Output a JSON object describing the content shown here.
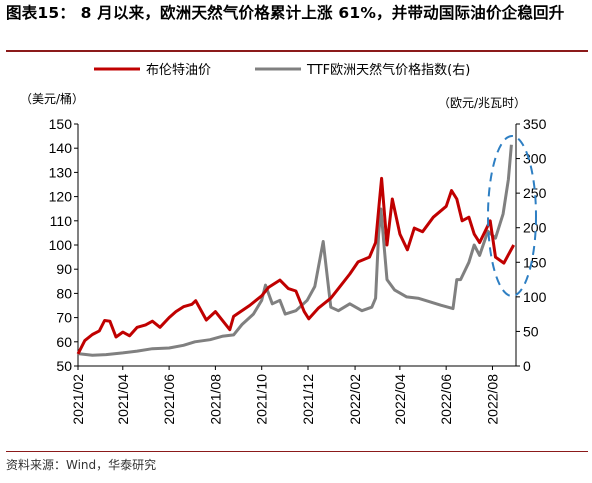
{
  "figure": {
    "title": "图表15： 8 月以来，欧洲天然气价格累计上涨 61%，并带动国际油价企稳回升",
    "source": "资料来源：Wind，华泰研究"
  },
  "chart_data": {
    "type": "line",
    "left_unit": "（美元/桶）",
    "right_unit": "（欧元/兆瓦时）",
    "x_ticks": [
      "2021/02",
      "2021/04",
      "2021/06",
      "2021/08",
      "2021/10",
      "2021/12",
      "2022/02",
      "2022/04",
      "2022/06",
      "2022/08"
    ],
    "y_left_ticks": [
      "50",
      "60",
      "70",
      "80",
      "90",
      "100",
      "110",
      "120",
      "130",
      "140",
      "150"
    ],
    "y_right_ticks": [
      "0",
      "50",
      "100",
      "150",
      "200",
      "250",
      "300",
      "350"
    ],
    "y_left_range": [
      50,
      150
    ],
    "y_right_range": [
      0,
      350
    ],
    "x_range": [
      "2021-02-01",
      "2022-09-01"
    ],
    "legend_position": "top",
    "series": [
      {
        "name": "布伦特油价",
        "axis": "left",
        "color": "#c00000",
        "points": [
          [
            "2021-02-01",
            55.0
          ],
          [
            "2021-02-10",
            60.5
          ],
          [
            "2021-02-20",
            63.0
          ],
          [
            "2021-03-01",
            64.5
          ],
          [
            "2021-03-08",
            68.8
          ],
          [
            "2021-03-15",
            68.5
          ],
          [
            "2021-03-23",
            62.0
          ],
          [
            "2021-04-01",
            64.0
          ],
          [
            "2021-04-10",
            62.5
          ],
          [
            "2021-04-20",
            66.0
          ],
          [
            "2021-05-01",
            67.0
          ],
          [
            "2021-05-10",
            68.5
          ],
          [
            "2021-05-20",
            66.0
          ],
          [
            "2021-06-01",
            70.0
          ],
          [
            "2021-06-10",
            72.5
          ],
          [
            "2021-06-20",
            74.5
          ],
          [
            "2021-07-01",
            75.5
          ],
          [
            "2021-07-06",
            77.0
          ],
          [
            "2021-07-20",
            69.0
          ],
          [
            "2021-08-01",
            72.5
          ],
          [
            "2021-08-20",
            65.0
          ],
          [
            "2021-08-25",
            70.5
          ],
          [
            "2021-09-01",
            72.0
          ],
          [
            "2021-09-15",
            75.0
          ],
          [
            "2021-10-01",
            79.0
          ],
          [
            "2021-10-10",
            82.5
          ],
          [
            "2021-10-25",
            85.5
          ],
          [
            "2021-11-05",
            82.0
          ],
          [
            "2021-11-15",
            81.0
          ],
          [
            "2021-11-26",
            72.5
          ],
          [
            "2021-12-02",
            69.5
          ],
          [
            "2021-12-15",
            74.0
          ],
          [
            "2021-12-31",
            78.0
          ],
          [
            "2022-01-10",
            82.0
          ],
          [
            "2022-01-25",
            88.0
          ],
          [
            "2022-02-05",
            93.0
          ],
          [
            "2022-02-20",
            95.0
          ],
          [
            "2022-02-28",
            101.0
          ],
          [
            "2022-03-05",
            118.0
          ],
          [
            "2022-03-08",
            127.5
          ],
          [
            "2022-03-15",
            100.0
          ],
          [
            "2022-03-22",
            119.0
          ],
          [
            "2022-04-01",
            104.5
          ],
          [
            "2022-04-11",
            98.0
          ],
          [
            "2022-04-20",
            107.0
          ],
          [
            "2022-05-01",
            105.5
          ],
          [
            "2022-05-15",
            111.5
          ],
          [
            "2022-06-01",
            116.0
          ],
          [
            "2022-06-08",
            122.5
          ],
          [
            "2022-06-15",
            119.0
          ],
          [
            "2022-06-22",
            110.0
          ],
          [
            "2022-07-01",
            111.5
          ],
          [
            "2022-07-08",
            104.5
          ],
          [
            "2022-07-15",
            101.0
          ],
          [
            "2022-07-29",
            110.0
          ],
          [
            "2022-08-05",
            95.0
          ],
          [
            "2022-08-16",
            92.5
          ],
          [
            "2022-08-22",
            96.0
          ],
          [
            "2022-08-29",
            100.0
          ]
        ]
      },
      {
        "name": "TTF欧洲天然气价格指数(右)",
        "axis": "right",
        "color": "#808080",
        "points": [
          [
            "2021-02-01",
            18.0
          ],
          [
            "2021-02-20",
            15.5
          ],
          [
            "2021-03-10",
            16.5
          ],
          [
            "2021-04-01",
            19.0
          ],
          [
            "2021-04-20",
            21.5
          ],
          [
            "2021-05-10",
            25.0
          ],
          [
            "2021-06-01",
            26.0
          ],
          [
            "2021-06-20",
            30.0
          ],
          [
            "2021-07-05",
            35.0
          ],
          [
            "2021-07-25",
            38.0
          ],
          [
            "2021-08-10",
            43.0
          ],
          [
            "2021-08-25",
            45.0
          ],
          [
            "2021-09-05",
            60.0
          ],
          [
            "2021-09-20",
            75.0
          ],
          [
            "2021-10-01",
            95.0
          ],
          [
            "2021-10-06",
            117.0
          ],
          [
            "2021-10-15",
            90.0
          ],
          [
            "2021-10-25",
            95.0
          ],
          [
            "2021-11-01",
            75.0
          ],
          [
            "2021-11-15",
            80.0
          ],
          [
            "2021-11-30",
            95.0
          ],
          [
            "2021-12-10",
            115.0
          ],
          [
            "2021-12-21",
            180.0
          ],
          [
            "2021-12-31",
            85.0
          ],
          [
            "2022-01-10",
            80.0
          ],
          [
            "2022-01-25",
            90.0
          ],
          [
            "2022-02-10",
            80.0
          ],
          [
            "2022-02-23",
            85.0
          ],
          [
            "2022-02-28",
            98.0
          ],
          [
            "2022-03-04",
            190.0
          ],
          [
            "2022-03-07",
            227.0
          ],
          [
            "2022-03-15",
            125.0
          ],
          [
            "2022-03-25",
            110.0
          ],
          [
            "2022-04-10",
            100.0
          ],
          [
            "2022-04-25",
            98.0
          ],
          [
            "2022-05-10",
            93.0
          ],
          [
            "2022-05-25",
            88.0
          ],
          [
            "2022-06-10",
            83.0
          ],
          [
            "2022-06-15",
            125.0
          ],
          [
            "2022-06-20",
            125.0
          ],
          [
            "2022-07-01",
            150.0
          ],
          [
            "2022-07-08",
            175.0
          ],
          [
            "2022-07-15",
            160.0
          ],
          [
            "2022-07-26",
            195.0
          ],
          [
            "2022-08-05",
            185.0
          ],
          [
            "2022-08-15",
            220.0
          ],
          [
            "2022-08-22",
            270.0
          ],
          [
            "2022-08-26",
            320.0
          ]
        ]
      }
    ],
    "annotation": "dashed-blue-ellipse-around-latest-values"
  }
}
